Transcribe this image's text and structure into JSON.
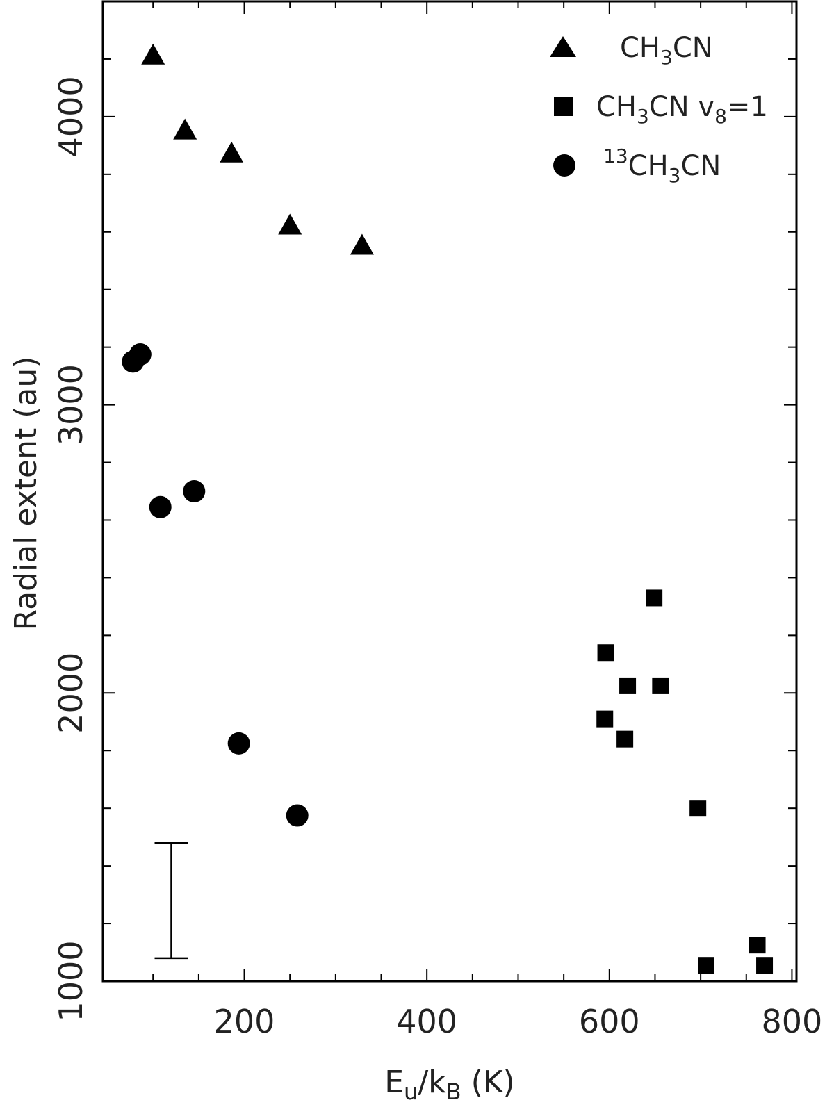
{
  "chart_data": {
    "type": "scatter",
    "xlabel": "E_u/k_B (K)",
    "ylabel": "Radial extent (au)",
    "xlim": [
      45,
      805
    ],
    "ylim": [
      1000,
      4400
    ],
    "x_ticks": [
      200,
      400,
      600,
      800
    ],
    "y_ticks": [
      1000,
      2000,
      3000,
      4000
    ],
    "legend_position": "top-right",
    "series": [
      {
        "name": "CH3CN",
        "name_parts": {
          "base": "CH",
          "sub": "3",
          "tail": "CN"
        },
        "marker": "triangle",
        "points": [
          {
            "x": 100,
            "y": 4210
          },
          {
            "x": 135,
            "y": 3950
          },
          {
            "x": 186,
            "y": 3870
          },
          {
            "x": 250,
            "y": 3620
          },
          {
            "x": 329,
            "y": 3550
          }
        ]
      },
      {
        "name": "CH3CN v8=1",
        "name_parts": {
          "base": "CH",
          "sub": "3",
          "tail": "CN  v",
          "sub2": "8",
          "tail2": "=1"
        },
        "marker": "square",
        "points": [
          {
            "x": 596,
            "y": 2140
          },
          {
            "x": 595,
            "y": 1910
          },
          {
            "x": 617,
            "y": 1840
          },
          {
            "x": 620,
            "y": 2025
          },
          {
            "x": 649,
            "y": 2330
          },
          {
            "x": 656,
            "y": 2025
          },
          {
            "x": 697,
            "y": 1600
          },
          {
            "x": 706,
            "y": 1055
          },
          {
            "x": 762,
            "y": 1125
          },
          {
            "x": 770,
            "y": 1055
          }
        ]
      },
      {
        "name": "13CH3CN",
        "name_parts": {
          "sup": "13",
          "base": "CH",
          "sub": "3",
          "tail": "CN"
        },
        "marker": "circle",
        "points": [
          {
            "x": 78,
            "y": 3150
          },
          {
            "x": 86,
            "y": 3175
          },
          {
            "x": 108,
            "y": 2645
          },
          {
            "x": 145,
            "y": 2700
          },
          {
            "x": 194,
            "y": 1825
          },
          {
            "x": 258,
            "y": 1575
          }
        ]
      }
    ],
    "error_bar": {
      "x": 120,
      "y_low": 1080,
      "y_high": 1480
    }
  }
}
